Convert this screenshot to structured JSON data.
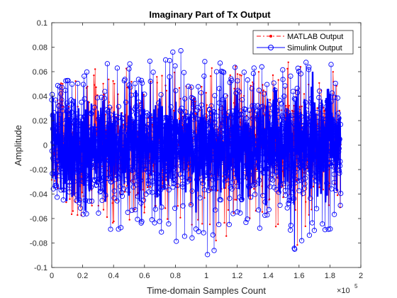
{
  "chart_data": {
    "type": "line",
    "title": "Imaginary Part of Tx Output",
    "xlabel": "Time-domain Samples Count",
    "ylabel": "Amplitude",
    "x_exponent_label": "×10",
    "x_exponent_power": "5",
    "xlim": [
      0,
      200000
    ],
    "ylim": [
      -0.1,
      0.1
    ],
    "x_ticks": [
      0,
      20000,
      40000,
      60000,
      80000,
      100000,
      120000,
      140000,
      160000,
      180000,
      200000
    ],
    "x_tick_labels": [
      "0",
      "0.2",
      "0.4",
      "0.6",
      "0.8",
      "1",
      "1.2",
      "1.4",
      "1.6",
      "1.8",
      "2"
    ],
    "y_ticks": [
      -0.1,
      -0.08,
      -0.06,
      -0.04,
      -0.02,
      0,
      0.02,
      0.04,
      0.06,
      0.08,
      0.1
    ],
    "y_tick_labels": [
      "-0.1",
      "-0.08",
      "-0.06",
      "-0.04",
      "-0.02",
      "0",
      "0.02",
      "0.04",
      "0.06",
      "0.08",
      "0.1"
    ],
    "legend_position": "top-right",
    "colors": {
      "matlab": "#ff0000",
      "simulink": "#0000ff"
    },
    "series": [
      {
        "name": "MATLAB Output",
        "style": "dash-dot red line with dot markers",
        "x_range": [
          0,
          187000
        ],
        "y_range": [
          -0.085,
          0.08
        ],
        "note_values_peak": [
          [
            0,
            -0.05,
            0.05
          ],
          [
            20000,
            -0.06,
            0.06
          ],
          [
            40000,
            -0.07,
            0.065
          ],
          [
            60000,
            -0.06,
            0.06
          ],
          [
            80000,
            -0.065,
            0.06
          ],
          [
            100000,
            -0.085,
            0.065
          ],
          [
            120000,
            -0.07,
            0.065
          ],
          [
            140000,
            -0.07,
            0.06
          ],
          [
            160000,
            -0.085,
            0.075
          ],
          [
            180000,
            -0.065,
            0.075
          ],
          [
            187000,
            -0.05,
            0.05
          ]
        ]
      },
      {
        "name": "Simulink Output",
        "style": "blue line with circle markers",
        "x_range": [
          0,
          187000
        ],
        "y_range": [
          -0.093,
          0.082
        ],
        "note_values_peak": [
          [
            0,
            -0.045,
            0.045
          ],
          [
            20000,
            -0.06,
            0.065
          ],
          [
            40000,
            -0.07,
            0.07
          ],
          [
            60000,
            -0.07,
            0.065
          ],
          [
            75000,
            -0.08,
            0.082
          ],
          [
            100000,
            -0.093,
            0.07
          ],
          [
            120000,
            -0.07,
            0.065
          ],
          [
            140000,
            -0.07,
            0.065
          ],
          [
            160000,
            -0.09,
            0.075
          ],
          [
            180000,
            -0.07,
            0.072
          ],
          [
            187000,
            -0.05,
            0.05
          ]
        ]
      }
    ]
  }
}
